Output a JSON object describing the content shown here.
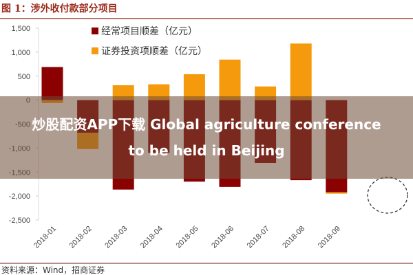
{
  "chart_data": {
    "type": "bar",
    "stacked": true,
    "title": "图 1：涉外收付款部分项目",
    "categories": [
      "2018-01",
      "2018-02",
      "2018-03",
      "2018-04",
      "2018-05",
      "2018-06",
      "2018-07",
      "2018-08",
      "2018-09"
    ],
    "series": [
      {
        "name": "经常项目顺差（亿元）",
        "color": "#8b0000",
        "values": [
          690,
          -680,
          -1865,
          -1100,
          -1700,
          -1810,
          -1310,
          -1670,
          -1920
        ]
      },
      {
        "name": "证券投资项顺差（亿元）",
        "color": "#f59a0c",
        "values": [
          -60,
          -340,
          310,
          330,
          540,
          845,
          285,
          1180,
          -30
        ]
      }
    ],
    "ylim": [
      -2500,
      1500
    ],
    "yticks": [
      1500,
      1000,
      500,
      0,
      -500,
      -1000,
      -1500,
      -2000,
      -2500
    ],
    "ytick_labels": [
      "1,500",
      "1,000",
      "500",
      "0",
      "-500",
      "-1,000",
      "-1,500",
      "-2,000",
      "-2,500"
    ],
    "xlabel": "",
    "ylabel": "",
    "grid": false,
    "legend": "top-left",
    "source": "资料来源：Wind，招商证券"
  },
  "banner": {
    "line1": "炒股配资APP下载 Global agriculture conference",
    "line2": "to be held in Beijing"
  }
}
